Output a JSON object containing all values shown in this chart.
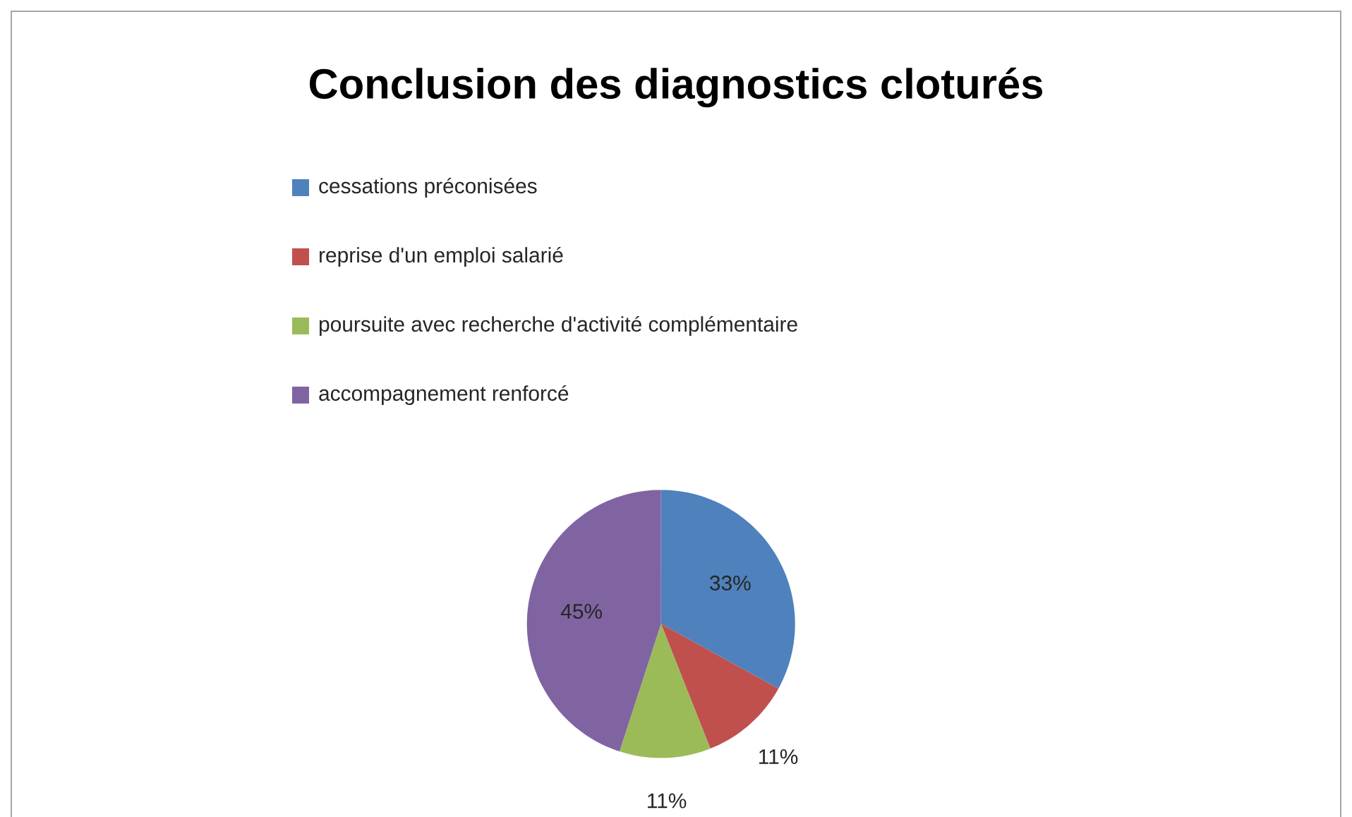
{
  "chart_data": {
    "type": "pie",
    "title": "Conclusion des diagnostics cloturés",
    "categories": [
      "cessations préconisées",
      "reprise d'un emploi salarié",
      "poursuite avec recherche d'activité complémentaire",
      "accompagnement renforcé"
    ],
    "values": [
      33,
      11,
      11,
      45
    ],
    "value_labels": [
      "33%",
      "11%",
      "11%",
      "45%"
    ],
    "colors": [
      "#4f81bd",
      "#c0504d",
      "#9bbb59",
      "#8064a2"
    ],
    "legend": "top"
  }
}
